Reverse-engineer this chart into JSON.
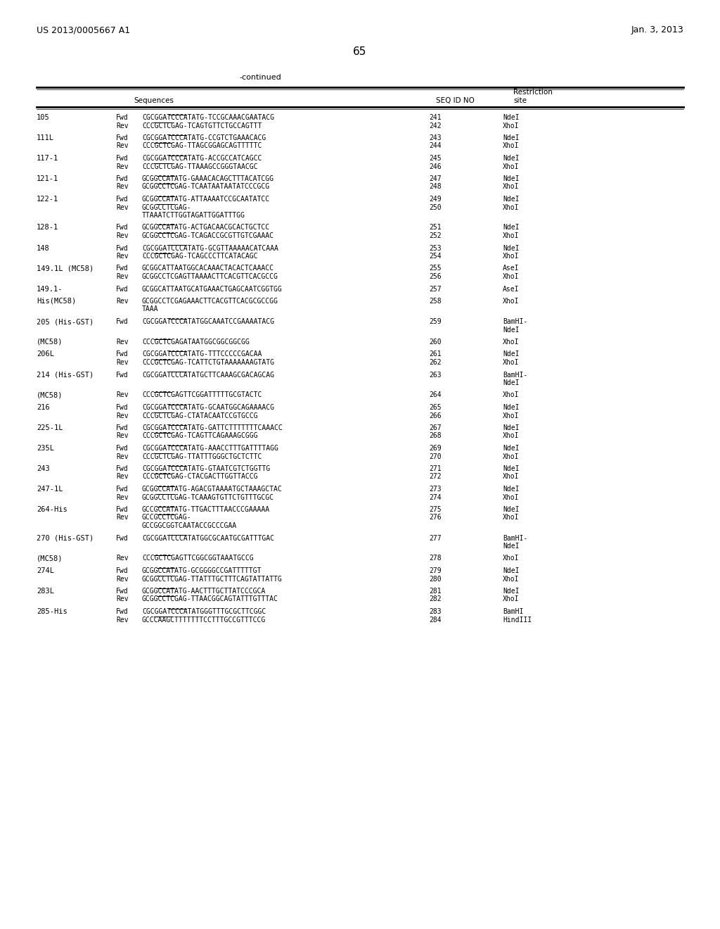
{
  "header_left": "US 2013/0005667 A1",
  "header_right": "Jan. 3, 2013",
  "page_number": "65",
  "continued": "-continued",
  "col_sequences": "Sequences",
  "col_seqid": "SEQ ID NO",
  "col_restriction_top": "Restriction",
  "col_restriction_bot": "site",
  "background_color": "#ffffff",
  "rows": [
    {
      "primer": "105",
      "dir": "Fwd",
      "sequence": "CGCGGATCCCATATG-TCCGCAAACGAATACG",
      "underline": "CATATG",
      "seqid": "241",
      "restriction": "NdeI",
      "seq2": "",
      "restr2": ""
    },
    {
      "primer": "",
      "dir": "Rev",
      "sequence": "CCCGCTCGAG-TCAGTGTTCTGCCAGTTT",
      "underline": "CTCGAG",
      "seqid": "242",
      "restriction": "XhoI",
      "seq2": "",
      "restr2": ""
    },
    {
      "primer": "111L",
      "dir": "Fwd",
      "sequence": "CGCGGATCCCATATG-CCGTCTGAAACACG",
      "underline": "CATATG",
      "seqid": "243",
      "restriction": "NdeI",
      "seq2": "",
      "restr2": ""
    },
    {
      "primer": "",
      "dir": "Rev",
      "sequence": "CCCGCTCGAG-TTAGCGGAGCAGTTTTTC",
      "underline": "CTCGAG",
      "seqid": "244",
      "restriction": "XhoI",
      "seq2": "",
      "restr2": ""
    },
    {
      "primer": "117-1",
      "dir": "Fwd",
      "sequence": "CGCGGATCCCATATG-ACCGCCATCAGCC",
      "underline": "CATATG",
      "seqid": "245",
      "restriction": "NdeI",
      "seq2": "",
      "restr2": ""
    },
    {
      "primer": "",
      "dir": "Rev",
      "sequence": "CCCGCTCGAG-TTAAAGCCGGGTAACGC",
      "underline": "CTCGAG",
      "seqid": "246",
      "restriction": "XhoI",
      "seq2": "",
      "restr2": ""
    },
    {
      "primer": "121-1",
      "dir": "Fwd",
      "sequence": "GCGGCCATATG-GAAACACAGCTTTACATCGG",
      "underline": "CATATG",
      "seqid": "247",
      "restriction": "NdeI",
      "seq2": "",
      "restr2": ""
    },
    {
      "primer": "",
      "dir": "Rev",
      "sequence": "GCGGCCTCGAG-TCAATAATAATATCCCGCG",
      "underline": "CTCGAG",
      "seqid": "248",
      "restriction": "XhoI",
      "seq2": "",
      "restr2": ""
    },
    {
      "primer": "122-1",
      "dir": "Fwd",
      "sequence": "GCGGCCATATG-ATTAAAATCCGCAATATCC",
      "underline": "CATATG",
      "seqid": "249",
      "restriction": "NdeI",
      "seq2": "",
      "restr2": ""
    },
    {
      "primer": "",
      "dir": "Rev",
      "sequence": "GCGGCCTCGAG-",
      "underline": "CTCGAG",
      "seqid": "250",
      "restriction": "XhoI",
      "seq2": "TTAAATCTTGGTAGATTGGATTTGG",
      "restr2": ""
    },
    {
      "primer": "128-1",
      "dir": "Fwd",
      "sequence": "GCGGCCATATG-ACTGACAACGCACTGCTCC",
      "underline": "CATATG",
      "seqid": "251",
      "restriction": "NdeI",
      "seq2": "",
      "restr2": ""
    },
    {
      "primer": "",
      "dir": "Rev",
      "sequence": "GCGGCCTCGAG-TCAGACCGCGTTGTCGAAAC",
      "underline": "CTCGAG",
      "seqid": "252",
      "restriction": "XhoI",
      "seq2": "",
      "restr2": ""
    },
    {
      "primer": "148",
      "dir": "Fwd",
      "sequence": "CGCGGATCCCATATG-GCGTTAAAAACATCAAA",
      "underline": "CATATG",
      "seqid": "253",
      "restriction": "NdeI",
      "seq2": "",
      "restr2": ""
    },
    {
      "primer": "",
      "dir": "Rev",
      "sequence": "CCCGCTCGAG-TCAGCCCTTCATACAGC",
      "underline": "CTCGAG",
      "seqid": "254",
      "restriction": "XhoI",
      "seq2": "",
      "restr2": ""
    },
    {
      "primer": "149.1L (MC58)",
      "dir": "Fwd",
      "sequence": "GCGGCATTAATGGCACAAACTACACTCAAACC",
      "underline": "",
      "seqid": "255",
      "restriction": "AseI",
      "seq2": "",
      "restr2": ""
    },
    {
      "primer": "",
      "dir": "Rev",
      "sequence": "GCGGCCTCGAGTTAAAACTTCACGTTCACGCCG",
      "underline": "",
      "seqid": "256",
      "restriction": "XhoI",
      "seq2": "",
      "restr2": ""
    },
    {
      "primer": "149.1-",
      "dir": "Fwd",
      "sequence": "GCGGCATTAATGCATGAAACTGAGCAATCGGTGG",
      "underline": "",
      "seqid": "257",
      "restriction": "AseI",
      "seq2": "",
      "restr2": ""
    },
    {
      "primer": "His(MC58)",
      "dir": "Rev",
      "sequence": "GCGGCCTCGAGAAACTTCACGTTCACGCGCCGG",
      "underline": "",
      "seqid": "258",
      "restriction": "XhoI",
      "seq2": "TAAA",
      "restr2": ""
    },
    {
      "primer": "205 (His-GST)",
      "dir": "Fwd",
      "sequence": "CGCGGATCCCATATGGCAAATCCGAAAATACG",
      "underline": "CATATG",
      "seqid": "259",
      "restriction": "BamHI-",
      "seq2": "",
      "restr2": "NdeI"
    },
    {
      "primer": "(MC58)",
      "dir": "Rev",
      "sequence": "CCCGCTCGAGATAATGGCGGCGGCGG",
      "underline": "CTCGAG",
      "seqid": "260",
      "restriction": "XhoI",
      "seq2": "",
      "restr2": ""
    },
    {
      "primer": "206L",
      "dir": "Fwd",
      "sequence": "CGCGGATCCCATATG-TTTCCCCCGACAA",
      "underline": "CATATG",
      "seqid": "261",
      "restriction": "NdeI",
      "seq2": "",
      "restr2": ""
    },
    {
      "primer": "",
      "dir": "Rev",
      "sequence": "CCCGCTCGAG-TCATTCTGTAAAAAAAGTATG",
      "underline": "CTCGAG",
      "seqid": "262",
      "restriction": "XhoI",
      "seq2": "",
      "restr2": ""
    },
    {
      "primer": "214 (His-GST)",
      "dir": "Fwd",
      "sequence": "CGCGGATCCCATATGCTTCAAAGCGACAGCAG",
      "underline": "CATATG",
      "seqid": "263",
      "restriction": "BamHI-",
      "seq2": "",
      "restr2": "NdeI"
    },
    {
      "primer": "(MC58)",
      "dir": "Rev",
      "sequence": "CCCGCTCGAGTTCGGATTTTTGCGTACTC",
      "underline": "CTCGAG",
      "seqid": "264",
      "restriction": "XhoI",
      "seq2": "",
      "restr2": ""
    },
    {
      "primer": "216",
      "dir": "Fwd",
      "sequence": "CGCGGATCCCATATG-GCAATGGCAGAAAACG",
      "underline": "CATATG",
      "seqid": "265",
      "restriction": "NdeI",
      "seq2": "",
      "restr2": ""
    },
    {
      "primer": "",
      "dir": "Rev",
      "sequence": "CCCGCTCGAG-CTATACAATCCGTGCCG",
      "underline": "CTCGAG",
      "seqid": "266",
      "restriction": "XhoI",
      "seq2": "",
      "restr2": ""
    },
    {
      "primer": "225-1L",
      "dir": "Fwd",
      "sequence": "CGCGGATCCCATATG-GATTCTTTTTTTCAAACC",
      "underline": "CATATG",
      "seqid": "267",
      "restriction": "NdeI",
      "seq2": "",
      "restr2": ""
    },
    {
      "primer": "",
      "dir": "Rev",
      "sequence": "CCCGCTCGAG-TCAGTTCAGAAAGCGGG",
      "underline": "CTCGAG",
      "seqid": "268",
      "restriction": "XhoI",
      "seq2": "",
      "restr2": ""
    },
    {
      "primer": "235L",
      "dir": "Fwd",
      "sequence": "CGCGGATCCCATATG-AAACCTTTGATTTTAGG",
      "underline": "CATATG",
      "seqid": "269",
      "restriction": "NdeI",
      "seq2": "",
      "restr2": ""
    },
    {
      "primer": "",
      "dir": "Rev",
      "sequence": "CCCGCTCGAG-TTATTTGGGCTGCTCTTC",
      "underline": "CTCGAG",
      "seqid": "270",
      "restriction": "XhoI",
      "seq2": "",
      "restr2": ""
    },
    {
      "primer": "243",
      "dir": "Fwd",
      "sequence": "CGCGGATCCCATATG-GTAATCGTCTGGTTG",
      "underline": "CATATG",
      "seqid": "271",
      "restriction": "NdeI",
      "seq2": "",
      "restr2": ""
    },
    {
      "primer": "",
      "dir": "Rev",
      "sequence": "CCCGCTCGAG-CTACGACTTGGTTACCG",
      "underline": "CTCGAG",
      "seqid": "272",
      "restriction": "XhoI",
      "seq2": "",
      "restr2": ""
    },
    {
      "primer": "247-1L",
      "dir": "Fwd",
      "sequence": "GCGGCCATATG-AGACGTAAAATGCTAAAGCTAC",
      "underline": "CATATG",
      "seqid": "273",
      "restriction": "NdeI",
      "seq2": "",
      "restr2": ""
    },
    {
      "primer": "",
      "dir": "Rev",
      "sequence": "GCGGCCTCGAG-TCAAAGTGTTCTGTTTGCGC",
      "underline": "CTCGAG",
      "seqid": "274",
      "restriction": "XhoI",
      "seq2": "",
      "restr2": ""
    },
    {
      "primer": "264-His",
      "dir": "Fwd",
      "sequence": "GCCGCCATATG-TTGACTTTAACCCGAAAAA",
      "underline": "CATATG",
      "seqid": "275",
      "restriction": "NdeI",
      "seq2": "",
      "restr2": ""
    },
    {
      "primer": "",
      "dir": "Rev",
      "sequence": "GCCGCCTCGAG-",
      "underline": "CTCGAG",
      "seqid": "276",
      "restriction": "XhoI",
      "seq2": "GCCGGCGGTCAATACCGCCCGAA",
      "restr2": ""
    },
    {
      "primer": "270 (His-GST)",
      "dir": "Fwd",
      "sequence": "CGCGGATCCCATATGGCGCAATGCGATTTGAC",
      "underline": "CATATG",
      "seqid": "277",
      "restriction": "BamHI-",
      "seq2": "",
      "restr2": "NdeI"
    },
    {
      "primer": "(MC58)",
      "dir": "Rev",
      "sequence": "CCCGCTCGAGTTCGGCGGTAAATGCCG",
      "underline": "CTCGAG",
      "seqid": "278",
      "restriction": "XhoI",
      "seq2": "",
      "restr2": ""
    },
    {
      "primer": "274L",
      "dir": "Fwd",
      "sequence": "GCGGCCATATG-GCGGGGCCGATTTTTGT",
      "underline": "CATATG",
      "seqid": "279",
      "restriction": "NdeI",
      "seq2": "",
      "restr2": ""
    },
    {
      "primer": "",
      "dir": "Rev",
      "sequence": "GCGGCCTCGAG-TTATTTGCTTTCAGTATTATTG",
      "underline": "CTCGAG",
      "seqid": "280",
      "restriction": "XhoI",
      "seq2": "",
      "restr2": ""
    },
    {
      "primer": "283L",
      "dir": "Fwd",
      "sequence": "GCGGCCATATG-AACTTTGCTTATCCCGCA",
      "underline": "CATATG",
      "seqid": "281",
      "restriction": "NdeI",
      "seq2": "",
      "restr2": ""
    },
    {
      "primer": "",
      "dir": "Rev",
      "sequence": "GCGGCCTCGAG-TTAACGGCAGTATTTGTTTAC",
      "underline": "CTCGAG",
      "seqid": "282",
      "restriction": "XhoI",
      "seq2": "",
      "restr2": ""
    },
    {
      "primer": "285-His",
      "dir": "Fwd",
      "sequence": "CGCGGATCCCATATGGGTTTGCGCTTCGGC",
      "underline": "CATATG",
      "seqid": "283",
      "restriction": "BamHI",
      "seq2": "",
      "restr2": ""
    },
    {
      "primer": "",
      "dir": "Rev",
      "sequence": "GCCCAAGCTTTTTTTCCTTTGCCGTTTCCG",
      "underline": "AAGCTT",
      "seqid": "284",
      "restriction": "HindIII",
      "seq2": "",
      "restr2": ""
    }
  ]
}
